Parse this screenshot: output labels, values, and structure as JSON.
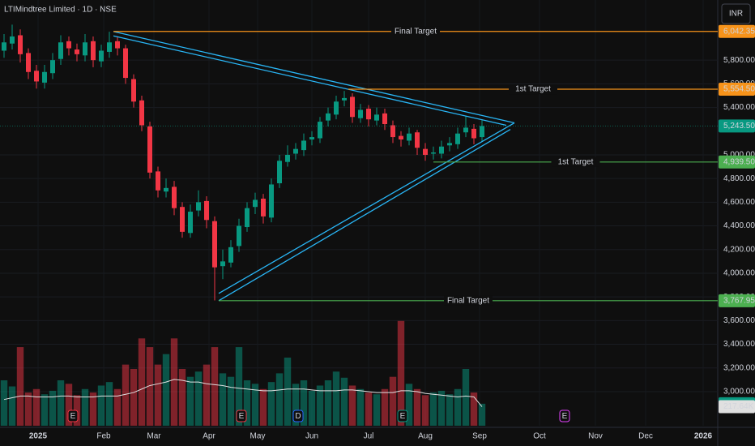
{
  "chart_data": {
    "type": "candlestick",
    "title": "LTIMindtree Limited · 1D · NSE",
    "currency": "INR",
    "xlim": [
      0,
      88.6
    ],
    "xticks": [
      {
        "value": 4.7,
        "label": "2025"
      },
      {
        "value": 12.8,
        "label": "Feb"
      },
      {
        "value": 19.0,
        "label": "Mar"
      },
      {
        "value": 25.8,
        "label": "Apr"
      },
      {
        "value": 31.8,
        "label": "May"
      },
      {
        "value": 38.5,
        "label": "Jun"
      },
      {
        "value": 45.5,
        "label": "Jul"
      },
      {
        "value": 52.5,
        "label": "Aug"
      },
      {
        "value": 59.2,
        "label": "Sep"
      },
      {
        "value": 66.6,
        "label": "Oct"
      },
      {
        "value": 73.5,
        "label": "Nov"
      },
      {
        "value": 79.7,
        "label": "Dec"
      },
      {
        "value": 86.8,
        "label": "2026"
      }
    ],
    "ylim": [
      2712,
      6308
    ],
    "yticks": [
      {
        "value": 3000,
        "label": "3,000.00"
      },
      {
        "value": 3200,
        "label": "3,200.00"
      },
      {
        "value": 3400,
        "label": "3,400.00"
      },
      {
        "value": 3600,
        "label": "3,600.00"
      },
      {
        "value": 3800,
        "label": "3,800.00"
      },
      {
        "value": 4000,
        "label": "4,000.00"
      },
      {
        "value": 4200,
        "label": "4,200.00"
      },
      {
        "value": 4400,
        "label": "4,400.00"
      },
      {
        "value": 4600,
        "label": "4,600.00"
      },
      {
        "value": 4800,
        "label": "4,800.00"
      },
      {
        "value": 5000,
        "label": "5,000.00"
      },
      {
        "value": 5400,
        "label": "5,400.00"
      },
      {
        "value": 5600,
        "label": "5,600.00"
      },
      {
        "value": 5800,
        "label": "5,800.00"
      }
    ],
    "grid": true,
    "up_color": "#089981",
    "down_color": "#f23645",
    "open": [
      5880,
      5940,
      6010,
      5860,
      5710,
      5610,
      5690,
      5810,
      5960,
      5890,
      5840,
      5960,
      5790,
      5870,
      5960,
      5900,
      5640,
      5460,
      5240,
      4860,
      4690,
      4730,
      4560,
      4340,
      4530,
      4610,
      4440,
      4060,
      4090,
      4230,
      4390,
      4560,
      4630,
      4470,
      4760,
      4940,
      5010,
      5040,
      5130,
      5140,
      5290,
      5340,
      5460,
      5490,
      5310,
      5390,
      5290,
      5350,
      5250,
      5160,
      5120,
      5190,
      5050,
      5010,
      5010,
      5080,
      5090,
      5190,
      5220,
      5150
    ],
    "high": [
      6020,
      6100,
      6060,
      5900,
      5760,
      5760,
      5860,
      6010,
      6000,
      5940,
      6020,
      6000,
      5930,
      6040,
      6000,
      5930,
      5680,
      5500,
      5280,
      4900,
      4800,
      4780,
      4600,
      4580,
      4700,
      4650,
      4480,
      4200,
      4280,
      4460,
      4600,
      4680,
      4670,
      4800,
      5000,
      5080,
      5100,
      5180,
      5200,
      5320,
      5400,
      5500,
      5540,
      5520,
      5430,
      5420,
      5400,
      5390,
      5290,
      5200,
      5230,
      5210,
      5100,
      5070,
      5120,
      5150,
      5230,
      5330,
      5260,
      5300
    ],
    "low": [
      5820,
      5890,
      5780,
      5640,
      5560,
      5560,
      5640,
      5760,
      5840,
      5790,
      5790,
      5740,
      5740,
      5820,
      5840,
      5600,
      5400,
      5200,
      4800,
      4640,
      4640,
      4490,
      4300,
      4300,
      4480,
      4380,
      3770,
      3950,
      4050,
      4180,
      4350,
      4500,
      4420,
      4430,
      4720,
      4900,
      4960,
      4990,
      5080,
      5100,
      5240,
      5300,
      5410,
      5270,
      5270,
      5240,
      5250,
      5210,
      5100,
      5070,
      5080,
      5000,
      4950,
      4960,
      4970,
      5030,
      5050,
      5150,
      5090,
      5110
    ],
    "close": [
      5950,
      6000,
      5850,
      5700,
      5620,
      5700,
      5800,
      5950,
      5900,
      5850,
      5950,
      5800,
      5880,
      5950,
      5900,
      5650,
      5450,
      5250,
      4850,
      4700,
      4720,
      4550,
      4350,
      4520,
      4600,
      4450,
      4050,
      4100,
      4220,
      4400,
      4550,
      4620,
      4480,
      4750,
      4950,
      5000,
      5050,
      5120,
      5150,
      5280,
      5350,
      5450,
      5480,
      5320,
      5380,
      5300,
      5340,
      5260,
      5150,
      5130,
      5180,
      5060,
      5000,
      5020,
      5070,
      5100,
      5180,
      5230,
      5140,
      5243.5
    ],
    "vlim": [
      0,
      1300
    ],
    "volume": [
      520,
      450,
      900,
      380,
      420,
      360,
      400,
      520,
      480,
      350,
      420,
      380,
      460,
      500,
      420,
      700,
      650,
      1000,
      900,
      700,
      820,
      1000,
      650,
      560,
      620,
      700,
      900,
      600,
      560,
      900,
      520,
      480,
      420,
      500,
      600,
      780,
      480,
      520,
      400,
      460,
      520,
      620,
      550,
      460,
      420,
      380,
      360,
      420,
      560,
      1200,
      480,
      420,
      350,
      380,
      400,
      360,
      420,
      650,
      380,
      251.75
    ],
    "volume_ma": [
      300,
      320,
      340,
      340,
      330,
      330,
      330,
      340,
      340,
      330,
      330,
      330,
      340,
      340,
      340,
      360,
      380,
      420,
      460,
      480,
      500,
      530,
      520,
      500,
      500,
      480,
      470,
      460,
      440,
      430,
      420,
      410,
      400,
      400,
      410,
      420,
      420,
      420,
      410,
      400,
      400,
      400,
      410,
      410,
      400,
      390,
      380,
      380,
      380,
      400,
      400,
      390,
      370,
      360,
      350,
      340,
      330,
      340,
      330,
      217.64
    ],
    "last_volume": {
      "value": 251.75,
      "label": "251.75K"
    },
    "last_volume_ma": {
      "value": 217.64,
      "label": "217.64K"
    },
    "last_price": {
      "value": 5243.5,
      "label": "5,243.50"
    },
    "targets": [
      {
        "name": "Final Target",
        "value": 6042.35,
        "label": "6,042.35",
        "start": 14,
        "color": "#f7931a"
      },
      {
        "name": "1st Target",
        "value": 5554.5,
        "label": "5,554.50",
        "start": 43,
        "color": "#f7931a"
      },
      {
        "name": "1st Target",
        "value": 4939.5,
        "label": "4,939.50",
        "start": 53.5,
        "color": "#4caf50"
      },
      {
        "name": "Final Target",
        "value": 3767.95,
        "label": "3,767.95",
        "start": 27,
        "color": "#4caf50"
      }
    ],
    "trendlines": [
      {
        "x": [
          14,
          63.5
        ],
        "y": [
          6042,
          5270
        ],
        "color": "#29b6f6"
      },
      {
        "x": [
          14,
          62.5
        ],
        "y": [
          6005,
          5250
        ],
        "color": "#29b6f6"
      },
      {
        "x": [
          27,
          63.5
        ],
        "y": [
          3830,
          5270
        ],
        "color": "#29b6f6"
      },
      {
        "x": [
          27,
          63
        ],
        "y": [
          3768,
          5215
        ],
        "color": "#29b6f6"
      }
    ],
    "events": [
      {
        "label": "E",
        "x": 9,
        "color": "#f23645"
      },
      {
        "label": "E",
        "x": 29.8,
        "color": "#f23645"
      },
      {
        "label": "D",
        "x": 36.8,
        "color": "#2962ff"
      },
      {
        "label": "E",
        "x": 49.7,
        "color": "#089981"
      },
      {
        "label": "E",
        "x": 69.7,
        "color": "#e040fb"
      }
    ]
  }
}
